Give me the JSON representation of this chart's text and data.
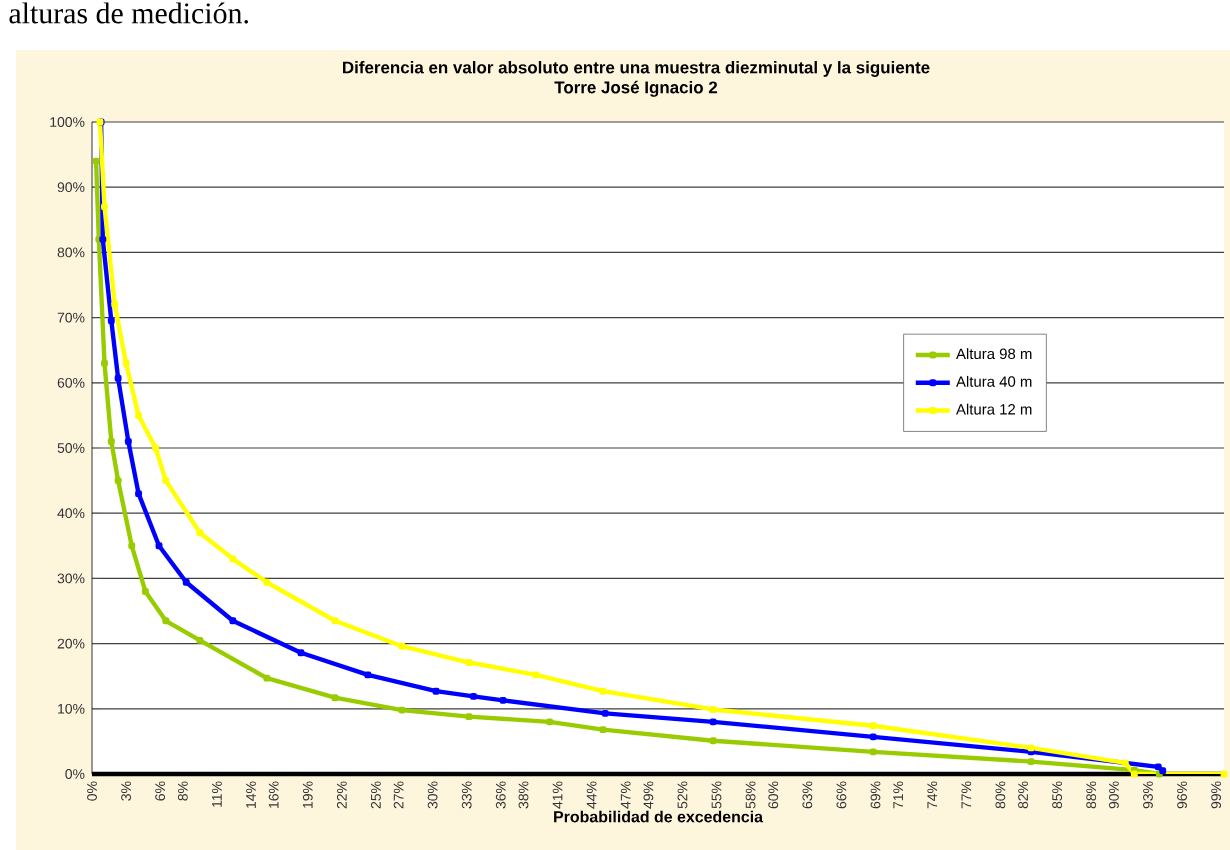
{
  "chart_data": {
    "type": "line",
    "title": "Diferencia en valor absoluto entre una muestra diezminutal y la siguiente",
    "subtitle": "Torre José Ignacio 2",
    "xlabel": "Probabilidad de excedencia",
    "annotations": [
      "alturas de medición."
    ],
    "xlim": [
      0,
      99.7
    ],
    "ylim": [
      0,
      100
    ],
    "xticks": [
      {
        "value": 0,
        "label": "0%"
      },
      {
        "value": 3,
        "label": "3%"
      },
      {
        "value": 6,
        "label": "6%"
      },
      {
        "value": 8,
        "label": "8%"
      },
      {
        "value": 11,
        "label": "11%"
      },
      {
        "value": 14,
        "label": "14%"
      },
      {
        "value": 16,
        "label": "16%"
      },
      {
        "value": 19,
        "label": "19%"
      },
      {
        "value": 22,
        "label": "22%"
      },
      {
        "value": 25,
        "label": "25%"
      },
      {
        "value": 27,
        "label": "27%"
      },
      {
        "value": 30,
        "label": "30%"
      },
      {
        "value": 33,
        "label": "33%"
      },
      {
        "value": 36,
        "label": "36%"
      },
      {
        "value": 38,
        "label": "38%"
      },
      {
        "value": 41,
        "label": "41%"
      },
      {
        "value": 44,
        "label": "44%"
      },
      {
        "value": 47,
        "label": "47%"
      },
      {
        "value": 49,
        "label": "49%"
      },
      {
        "value": 52,
        "label": "52%"
      },
      {
        "value": 55,
        "label": "55%"
      },
      {
        "value": 58,
        "label": "58%"
      },
      {
        "value": 60,
        "label": "60%"
      },
      {
        "value": 63,
        "label": "63%"
      },
      {
        "value": 66,
        "label": "66%"
      },
      {
        "value": 69,
        "label": "69%"
      },
      {
        "value": 71,
        "label": "71%"
      },
      {
        "value": 74,
        "label": "74%"
      },
      {
        "value": 77,
        "label": "77%"
      },
      {
        "value": 80,
        "label": "80%"
      },
      {
        "value": 82,
        "label": "82%"
      },
      {
        "value": 85,
        "label": "85%"
      },
      {
        "value": 88,
        "label": "88%"
      },
      {
        "value": 90,
        "label": "90%"
      },
      {
        "value": 93,
        "label": "93%"
      },
      {
        "value": 96,
        "label": "96%"
      },
      {
        "value": 99,
        "label": "99%"
      }
    ],
    "yticks": [
      {
        "value": 0,
        "label": "0%"
      },
      {
        "value": 10,
        "label": "10%"
      },
      {
        "value": 20,
        "label": "20%"
      },
      {
        "value": 30,
        "label": "30%"
      },
      {
        "value": 40,
        "label": "40%"
      },
      {
        "value": 50,
        "label": "50%"
      },
      {
        "value": 60,
        "label": "60%"
      },
      {
        "value": 70,
        "label": "70%"
      },
      {
        "value": 80,
        "label": "80%"
      },
      {
        "value": 90,
        "label": "90%"
      },
      {
        "value": 100,
        "label": "100%"
      }
    ],
    "grid": "y",
    "legend": "right",
    "marker": "square",
    "line_style": "solid",
    "series": [
      {
        "name": "Altura 98 m",
        "color": "#99cc00",
        "x": [
          0.36,
          0.6,
          1.1,
          1.7,
          2.3,
          3.5,
          4.7,
          6.5,
          9.5,
          15.4,
          21.4,
          27.3,
          33.2,
          40.3,
          45,
          54.7,
          68.8,
          82.7,
          91.8,
          94
        ],
        "values": [
          94,
          82,
          63,
          51,
          45,
          35,
          28,
          23.5,
          20.5,
          14.7,
          11.7,
          9.8,
          8.8,
          8.0,
          6.8,
          5.1,
          3.4,
          1.9,
          0.6,
          0
        ]
      },
      {
        "name": "Altura 40 m",
        "color": "#0000ff",
        "x": [
          0.8,
          0.95,
          1.7,
          2.3,
          3.2,
          4.1,
          5.9,
          8.3,
          12.4,
          18.4,
          24.3,
          30.3,
          33.6,
          36.2,
          45.2,
          54.7,
          68.8,
          82.7,
          93.9,
          94.3
        ],
        "values": [
          100,
          82,
          69.5,
          60.7,
          51,
          43,
          35,
          29.4,
          23.5,
          18.6,
          15.2,
          12.7,
          11.9,
          11.3,
          9.3,
          8.0,
          5.7,
          3.4,
          1.1,
          0.5
        ]
      },
      {
        "name": "Altura 12 m",
        "color": "#ffff00",
        "x": [
          0.7,
          1.1,
          2.0,
          3.0,
          4.1,
          5.6,
          6.5,
          9.5,
          12.4,
          15.4,
          21.4,
          27.3,
          33.2,
          39.1,
          45,
          54.7,
          68.8,
          82.7,
          91,
          91.8,
          99.7
        ],
        "values": [
          100,
          87,
          72,
          63,
          55,
          50,
          45,
          37,
          33,
          29.4,
          23.5,
          19.6,
          17.1,
          15.2,
          12.7,
          9.9,
          7.4,
          4.0,
          1.7,
          0,
          0
        ]
      }
    ]
  }
}
